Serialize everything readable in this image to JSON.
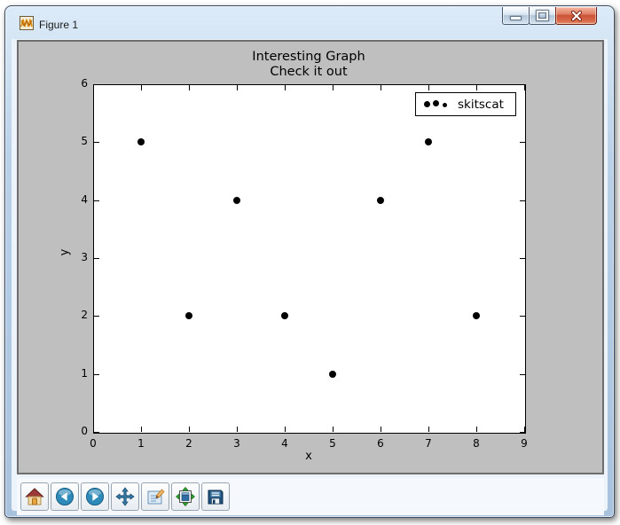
{
  "window": {
    "title": "Figure 1",
    "icon": "matplotlib-logo",
    "controls": {
      "minimize": "minimize",
      "maximize": "maximize",
      "close": "close"
    }
  },
  "chart": {
    "title_line1": "Interesting Graph",
    "title_line2": "Check it out",
    "xlabel": "x",
    "ylabel": "y",
    "legend_label": "skitscat",
    "x_ticks": [
      "0",
      "1",
      "2",
      "3",
      "4",
      "5",
      "6",
      "7",
      "8",
      "9"
    ],
    "y_ticks": [
      "0",
      "1",
      "2",
      "3",
      "4",
      "5",
      "6"
    ]
  },
  "chart_data": {
    "type": "scatter",
    "x": [
      1,
      2,
      3,
      4,
      5,
      6,
      7,
      8
    ],
    "y": [
      5,
      2,
      4,
      2,
      1,
      4,
      5,
      2
    ],
    "title": "Interesting Graph\nCheck it out",
    "xlabel": "x",
    "ylabel": "y",
    "xlim": [
      0,
      9
    ],
    "ylim": [
      0,
      6
    ],
    "x_tick_step": 1,
    "y_tick_step": 1,
    "grid": false,
    "marker": "dot",
    "marker_color": "#000000",
    "legend": [
      "skitscat"
    ],
    "legend_position": "upper right"
  },
  "toolbar": {
    "buttons": [
      {
        "name": "home",
        "icon": "home-icon"
      },
      {
        "name": "back",
        "icon": "back-arrow-icon"
      },
      {
        "name": "forward",
        "icon": "forward-arrow-icon"
      },
      {
        "name": "pan",
        "icon": "pan-arrows-icon"
      },
      {
        "name": "zoom-to-rect",
        "icon": "zoom-rect-icon"
      },
      {
        "name": "configure-subplots",
        "icon": "subplots-icon"
      },
      {
        "name": "save",
        "icon": "save-floppy-icon"
      }
    ]
  },
  "colors": {
    "figure_bg": "#bfbfbf",
    "axes_bg": "#ffffff",
    "marker": "#000000",
    "titlebar_top": "#dcebf8",
    "titlebar_bottom": "#a8c2de",
    "close_button_red": "#cd5136",
    "toolbar_bg": "#f5f9fd"
  }
}
